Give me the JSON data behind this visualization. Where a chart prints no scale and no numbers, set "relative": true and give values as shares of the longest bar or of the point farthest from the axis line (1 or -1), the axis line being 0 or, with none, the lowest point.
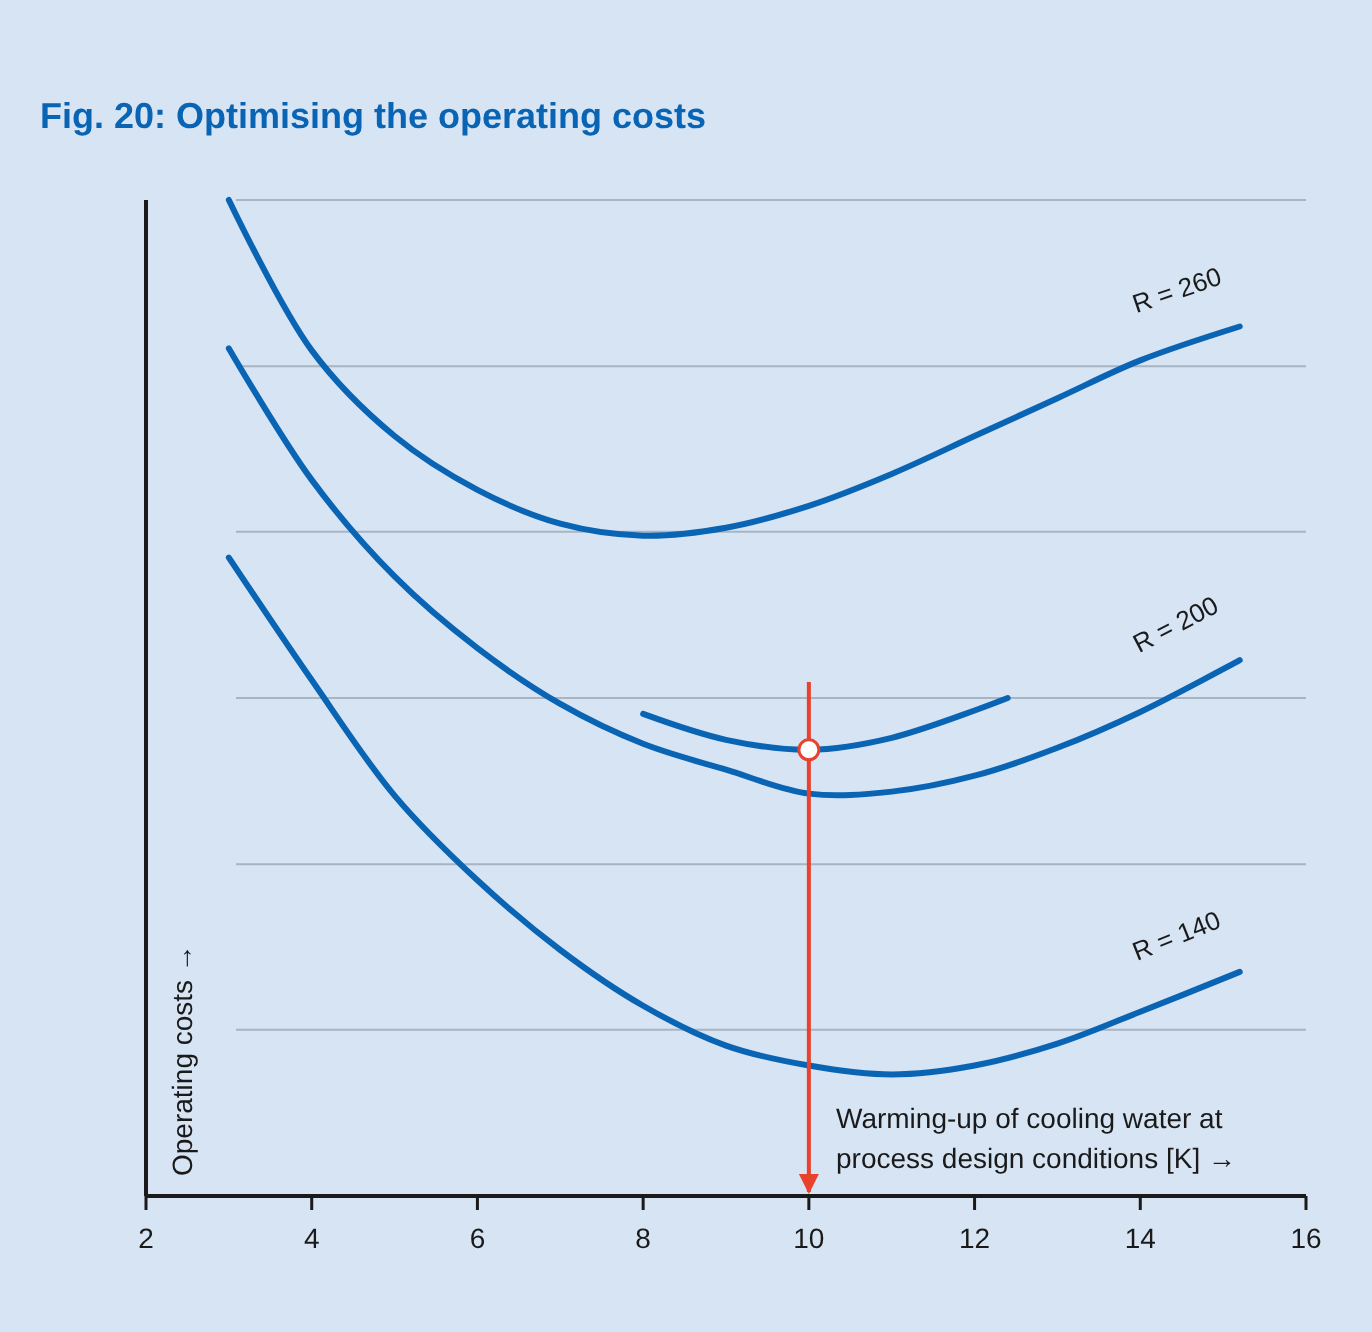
{
  "chart_data": {
    "type": "line",
    "title": "Fig. 20: Optimising the operating costs",
    "xlabel": "Warming-up of cooling water at\nprocess design conditions [K] →",
    "ylabel": "Operating costs →",
    "relative": true,
    "xlim": [
      2,
      16
    ],
    "xticks": [
      2,
      4,
      6,
      8,
      10,
      12,
      14,
      16
    ],
    "marker": "none",
    "line_style": "solid",
    "x": [
      3,
      4,
      5,
      6,
      7,
      8,
      9,
      10,
      11,
      12,
      13,
      14,
      15.2
    ],
    "series": [
      {
        "name": "R = 260",
        "color": "#0a64b4",
        "values": [
          1.0,
          0.849,
          0.763,
          0.709,
          0.675,
          0.663,
          0.671,
          0.693,
          0.725,
          0.763,
          0.801,
          0.839,
          0.873
        ]
      },
      {
        "name": "R = 200",
        "color": "#0a64b4",
        "values": [
          0.851,
          0.719,
          0.622,
          0.55,
          0.494,
          0.454,
          0.428,
          0.404,
          0.406,
          0.422,
          0.45,
          0.486,
          0.538
        ]
      },
      {
        "name": "R = 140",
        "color": "#0a64b4",
        "values": [
          0.641,
          0.518,
          0.402,
          0.317,
          0.247,
          0.191,
          0.151,
          0.131,
          0.122,
          0.131,
          0.153,
          0.185,
          0.225
        ]
      },
      {
        "color": "#0a64b4",
        "x": [
          8,
          9,
          10,
          11,
          12.4
        ],
        "values": [
          0.484,
          0.458,
          0.448,
          0.46,
          0.5
        ]
      },
      {
        "type": "scatter",
        "marker": "circle",
        "color": "#e8412c",
        "x": [
          10
        ],
        "values": [
          0.448
        ]
      }
    ],
    "ref_lines": [
      {
        "axis": "y",
        "value": 0.167,
        "color": "#a9b4c2"
      },
      {
        "axis": "y",
        "value": 0.333,
        "color": "#a9b4c2"
      },
      {
        "axis": "y",
        "value": 0.5,
        "color": "#a9b4c2"
      },
      {
        "axis": "y",
        "value": 0.667,
        "color": "#a9b4c2"
      },
      {
        "axis": "y",
        "value": 0.833,
        "color": "#a9b4c2"
      },
      {
        "axis": "y",
        "value": 1.0,
        "color": "#a9b4c2"
      },
      {
        "axis": "x",
        "value": 10,
        "color": "#e8412c"
      }
    ]
  }
}
